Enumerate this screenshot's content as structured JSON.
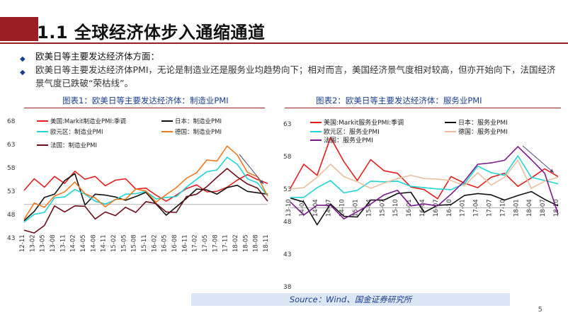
{
  "header": {
    "title": "1.1 全球经济体步入通缩通道"
  },
  "bullets": {
    "item1": "欧美日等主要发达经济体方面：",
    "item2": "欧美日等主要发达经济体PMI，无论是制造业还是服务业均趋势向下；相对而言，美国经济景气度相对较高，但亦开始向下，法国经济景气度已跌破“荣枯线”。"
  },
  "chart1": {
    "caption": "图表1：欧美日等主要发达经济体：制造业PMI"
  },
  "chart2": {
    "caption": "图表2：欧美日等主要发达经济体：服务业PMI"
  },
  "footer": {
    "source": "Source：Wind、国金证券研究所",
    "page": "5"
  },
  "chart_data": [
    {
      "type": "line",
      "title": "欧美日等主要发达经济体：制造业PMI",
      "ylim": [
        38,
        68
      ],
      "yticks": [
        "68",
        "63",
        "58",
        "53",
        "48",
        "43"
      ],
      "x": [
        "12-11",
        "13-02",
        "13-05",
        "13-08",
        "13-11",
        "14-02",
        "14-05",
        "14-08",
        "14-11",
        "15-02",
        "15-05",
        "15-08",
        "15-11",
        "16-02",
        "16-05",
        "16-08",
        "16-11",
        "17-02",
        "17-05",
        "17-08",
        "17-11",
        "18-02",
        "18-05",
        "18-08",
        "18-11"
      ],
      "series": [
        {
          "name": "美国:Markit制造业PMI:季调",
          "color": "#e02020",
          "values": [
            53.0,
            55.5,
            53.7,
            56.0,
            54.5,
            57.1,
            55.4,
            56.0,
            54.0,
            55.2,
            55.5,
            53.3,
            53.5,
            52.0,
            50.7,
            52.0,
            53.4,
            54.2,
            52.7,
            52.8,
            53.7,
            55.2,
            56.4,
            55.3,
            54.5
          ]
        },
        {
          "name": "日本：制造业PMI",
          "color": "#111111",
          "values": [
            46.5,
            48.5,
            51.5,
            52.2,
            55.1,
            56.6,
            49.9,
            52.2,
            52.0,
            51.6,
            50.9,
            51.7,
            52.6,
            50.1,
            47.7,
            49.5,
            51.3,
            53.3,
            53.1,
            52.2,
            53.6,
            54.1,
            52.8,
            52.5,
            52.2
          ]
        },
        {
          "name": "欧元区：制造业PMI",
          "color": "#22d4d4",
          "values": [
            46.2,
            47.9,
            48.3,
            51.4,
            51.6,
            53.2,
            52.2,
            50.7,
            50.1,
            51.0,
            52.2,
            52.3,
            52.8,
            51.2,
            51.5,
            51.7,
            53.7,
            55.4,
            57.0,
            57.4,
            60.1,
            58.6,
            55.5,
            54.6,
            51.8
          ]
        },
        {
          "name": "德国：制造业PMI",
          "color": "#ee7a20",
          "values": [
            46.8,
            50.3,
            49.4,
            51.8,
            52.7,
            54.8,
            52.3,
            51.4,
            49.5,
            51.1,
            51.1,
            53.3,
            52.9,
            50.5,
            52.1,
            53.6,
            55.6,
            56.8,
            59.5,
            59.3,
            62.5,
            60.6,
            56.9,
            55.9,
            51.8
          ]
        },
        {
          "name": "法国：制造业PMI",
          "color": "#6a0f1a",
          "values": [
            44.5,
            43.9,
            45.5,
            49.7,
            48.4,
            49.7,
            49.6,
            46.9,
            48.4,
            47.6,
            49.4,
            48.3,
            50.6,
            50.2,
            48.4,
            48.3,
            51.7,
            52.2,
            53.8,
            55.8,
            57.7,
            55.9,
            54.4,
            53.5,
            50.7
          ]
        }
      ]
    },
    {
      "type": "line",
      "title": "欧美日等主要发达经济体：服务业PMI",
      "ylim": [
        38,
        63
      ],
      "yticks": [
        "63",
        "58",
        "53",
        "48",
        "43",
        "38"
      ],
      "x": [
        "13-10",
        "14-01",
        "14-04",
        "14-07",
        "14-10",
        "15-01",
        "15-04",
        "15-07",
        "15-10",
        "16-01",
        "16-04",
        "16-07",
        "16-10",
        "17-01",
        "17-04",
        "17-07",
        "17-10",
        "18-01",
        "18-04",
        "18-07",
        "18-10"
      ],
      "series": [
        {
          "name": "美国:Markit服务业PMI:季调",
          "color": "#e02020",
          "values": [
            53.0,
            56.7,
            55.0,
            60.8,
            57.1,
            54.2,
            57.4,
            55.7,
            55.3,
            53.2,
            52.8,
            51.4,
            54.8,
            53.8,
            53.1,
            54.7,
            55.3,
            53.3,
            54.6,
            56.0,
            54.8
          ]
        },
        {
          "name": "日本：服务业PMI",
          "color": "#111111",
          "values": [
            51.5,
            50.9,
            47.4,
            50.6,
            48.7,
            48.6,
            51.2,
            51.2,
            52.2,
            52.4,
            49.3,
            50.4,
            50.5,
            51.9,
            52.2,
            52.0,
            51.2,
            51.9,
            52.5,
            51.3,
            50.3
          ]
        },
        {
          "name": "欧元区：服务业PMI",
          "color": "#22d4d4",
          "values": [
            51.6,
            51.6,
            53.1,
            54.2,
            52.3,
            52.7,
            54.1,
            54.0,
            54.1,
            53.3,
            53.1,
            52.9,
            52.8,
            53.7,
            56.4,
            55.4,
            55.0,
            58.0,
            54.7,
            54.2,
            53.7
          ]
        },
        {
          "name": "德国：服务业PMI",
          "color": "#e8c0a0",
          "values": [
            52.9,
            53.1,
            54.7,
            56.7,
            54.8,
            54.0,
            53.0,
            53.8,
            54.5,
            55.0,
            54.5,
            54.4,
            54.2,
            53.4,
            55.4,
            53.5,
            54.7,
            57.3,
            53.0,
            54.1,
            54.7
          ]
        },
        {
          "name": "法国：服务业PMI",
          "color": "#7a1a8a",
          "values": [
            50.9,
            48.9,
            50.4,
            50.4,
            48.3,
            49.4,
            50.6,
            52.0,
            52.7,
            50.3,
            50.6,
            50.3,
            52.1,
            54.1,
            56.7,
            56.9,
            57.3,
            59.4,
            57.4,
            55.3,
            49.0
          ]
        }
      ]
    }
  ]
}
